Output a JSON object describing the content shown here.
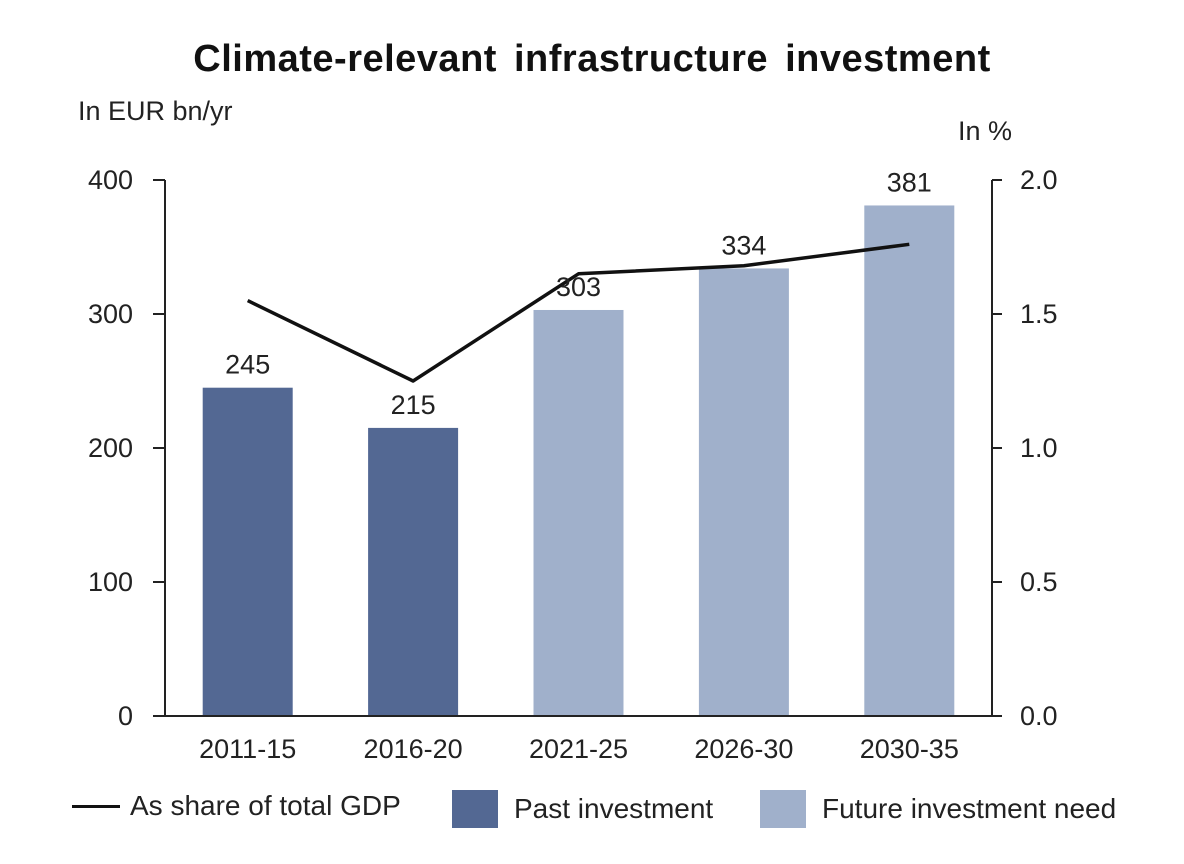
{
  "chart_data": {
    "type": "bar",
    "title": "Climate-relevant  infrastructure  investment",
    "ylabel": "In EUR bn/yr",
    "y2label": "In %",
    "categories": [
      "2011-15",
      "2016-20",
      "2021-25",
      "2026-30",
      "2030-35"
    ],
    "ylim": [
      0,
      400
    ],
    "yticks": [
      0,
      100,
      200,
      300,
      400
    ],
    "y2lim": [
      0.0,
      2.0
    ],
    "y2ticks": [
      "0.0",
      "0.5",
      "1.0",
      "1.5",
      "2.0"
    ],
    "series": [
      {
        "name": "Past investment",
        "kind": "bar",
        "axis": "left",
        "color": "#536893",
        "values": [
          245,
          215,
          null,
          null,
          null
        ]
      },
      {
        "name": "Future investment need",
        "kind": "bar",
        "axis": "left",
        "color": "#a0b0cb",
        "values": [
          null,
          null,
          303,
          334,
          381
        ]
      },
      {
        "name": "As share of total GDP",
        "kind": "line",
        "axis": "right",
        "color": "#111111",
        "values": [
          1.55,
          1.25,
          1.65,
          1.68,
          1.76
        ]
      }
    ],
    "data_labels": [
      "245",
      "215",
      "303",
      "334",
      "381"
    ],
    "legend": [
      {
        "label": "As share of total GDP",
        "kind": "line",
        "color": "#111111"
      },
      {
        "label": "Past investment",
        "kind": "swatch",
        "color": "#536893"
      },
      {
        "label": "Future investment need",
        "kind": "swatch",
        "color": "#a0b0cb"
      }
    ],
    "legend_position": "bottom"
  }
}
